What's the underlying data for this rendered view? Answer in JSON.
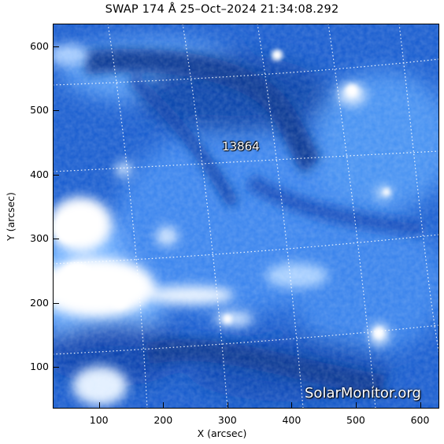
{
  "title": "SWAP 174 Å 25–Oct–2024 21:34:08.292",
  "xlabel": "X (arcsec)",
  "ylabel": "Y (arcsec)",
  "x_ticks": [
    "100",
    "200",
    "300",
    "400",
    "500",
    "600"
  ],
  "y_ticks": [
    "100",
    "200",
    "300",
    "400",
    "500",
    "600"
  ],
  "x_tick_values": [
    100,
    200,
    300,
    400,
    500,
    600
  ],
  "y_tick_values": [
    100,
    200,
    300,
    400,
    500,
    600
  ],
  "xlim": [
    28,
    630
  ],
  "ylim": [
    35,
    635
  ],
  "region_label": "13864",
  "watermark": "SolarMonitor.org",
  "colors": {
    "dark": "#0b3f9e",
    "mid": "#2f7fe8",
    "bright": "#ffffff",
    "grid": "#ffffff"
  }
}
